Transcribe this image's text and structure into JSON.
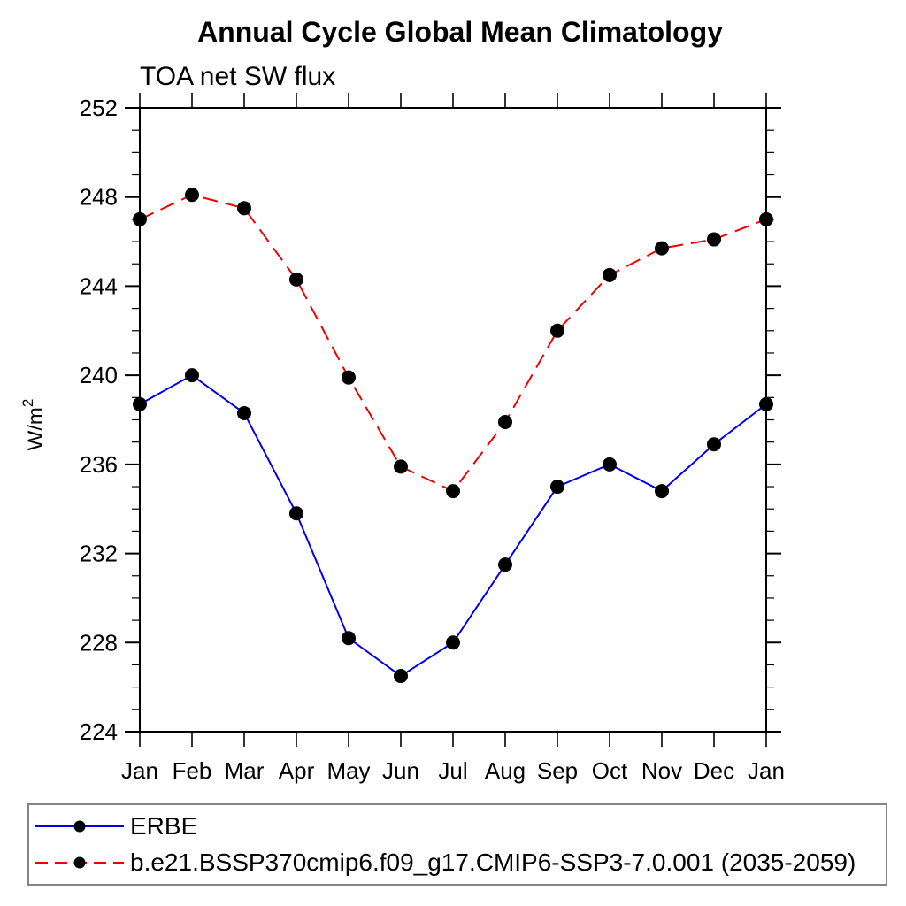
{
  "chart_data": {
    "type": "line",
    "title": "Annual Cycle Global Mean Climatology",
    "subtitle": "TOA net SW flux",
    "ylabel": "W/m²",
    "ylabel_parts": {
      "base": "W/m",
      "exp": "2"
    },
    "xlabel": "",
    "categories": [
      "Jan",
      "Feb",
      "Mar",
      "Apr",
      "May",
      "Jun",
      "Jul",
      "Aug",
      "Sep",
      "Oct",
      "Nov",
      "Dec",
      "Jan"
    ],
    "ylim": [
      224,
      252
    ],
    "ytick_step": 4,
    "minor_tick_step": 1,
    "yticks": [
      224,
      228,
      232,
      236,
      240,
      244,
      248,
      252
    ],
    "grid": false,
    "legend_position": "bottom",
    "frame_color": "#000000",
    "marker": {
      "shape": "circle",
      "color": "#000000"
    },
    "series": [
      {
        "name": "ERBE",
        "color": "#0000ee",
        "line_style": "solid",
        "values": [
          238.7,
          240.0,
          238.3,
          233.8,
          228.2,
          226.5,
          228.0,
          231.5,
          235.0,
          236.0,
          234.8,
          236.9,
          238.7
        ]
      },
      {
        "name": "b.e21.BSSP370cmip6.f09_g17.CMIP6-SSP3-7.0.001 (2035-2059)",
        "color": "#f00000",
        "line_style": "dashed",
        "values": [
          247.0,
          248.1,
          247.5,
          244.3,
          239.9,
          235.9,
          234.8,
          237.9,
          242.0,
          244.5,
          245.7,
          246.1,
          247.0
        ]
      }
    ]
  }
}
